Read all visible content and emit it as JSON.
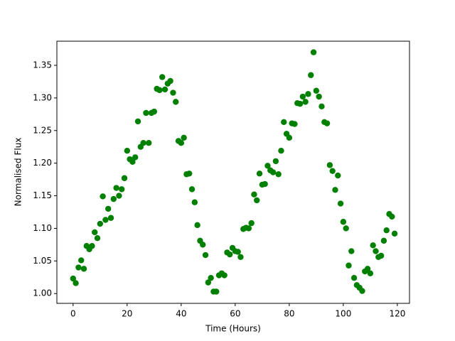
{
  "chart_data": {
    "type": "scatter",
    "xlabel": "Time (Hours)",
    "ylabel": "Normalised Flux",
    "color": "#008000",
    "x": [
      0,
      1,
      2,
      3,
      4,
      5,
      6,
      7,
      8,
      9,
      10,
      11,
      12,
      13,
      14,
      15,
      16,
      17,
      18,
      19,
      20,
      21,
      22,
      23,
      24,
      25,
      26,
      27,
      28,
      29,
      30,
      31,
      32,
      33,
      34,
      35,
      36,
      37,
      38,
      39,
      40,
      41,
      42,
      43,
      44,
      45,
      46,
      47,
      48,
      49,
      50,
      51,
      52,
      53,
      54,
      55,
      56,
      57,
      58,
      59,
      60,
      61,
      62,
      63,
      64,
      65,
      66,
      67,
      68,
      69,
      70,
      71,
      72,
      73,
      74,
      75,
      76,
      77,
      78,
      79,
      80,
      81,
      82,
      83,
      84,
      85,
      86,
      87,
      88,
      89,
      90,
      91,
      92,
      93,
      94,
      95,
      96,
      97,
      98,
      99,
      100,
      101,
      102,
      103,
      104,
      105,
      106,
      107,
      108,
      109,
      110,
      111,
      112,
      113,
      114,
      115,
      116,
      117,
      118,
      119
    ],
    "values": [
      1.023,
      1.016,
      1.04,
      1.051,
      1.038,
      1.073,
      1.068,
      1.073,
      1.094,
      1.085,
      1.107,
      1.149,
      1.113,
      1.13,
      1.116,
      1.145,
      1.162,
      1.15,
      1.16,
      1.177,
      1.219,
      1.206,
      1.202,
      1.209,
      1.264,
      1.225,
      1.231,
      1.277,
      1.231,
      1.277,
      1.279,
      1.314,
      1.312,
      1.332,
      1.313,
      1.322,
      1.326,
      1.308,
      1.294,
      1.234,
      1.231,
      1.239,
      1.183,
      1.184,
      1.16,
      1.14,
      1.105,
      1.081,
      1.075,
      1.059,
      1.017,
      1.024,
      1.003,
      1.003,
      1.028,
      1.031,
      1.028,
      1.063,
      1.06,
      1.07,
      1.065,
      1.064,
      1.056,
      1.099,
      1.101,
      1.1,
      1.108,
      1.152,
      1.143,
      1.184,
      1.167,
      1.168,
      1.196,
      1.189,
      1.186,
      1.203,
      1.183,
      1.219,
      1.263,
      1.245,
      1.239,
      1.261,
      1.26,
      1.292,
      1.291,
      1.302,
      1.294,
      1.306,
      1.335,
      1.37,
      1.311,
      1.302,
      1.287,
      1.263,
      1.261,
      1.197,
      1.188,
      1.159,
      1.181,
      1.138,
      1.11,
      1.1,
      1.043,
      1.065,
      1.024,
      1.013,
      1.009,
      1.004,
      1.034,
      1.038,
      1.031,
      1.074,
      1.065,
      1.056,
      1.058,
      1.081,
      1.097,
      1.122,
      1.118,
      1.092
    ],
    "xlim": [
      -6,
      124.5
    ],
    "ylim": [
      0.985,
      1.387
    ],
    "xticks": [
      0,
      20,
      40,
      60,
      80,
      100,
      120
    ],
    "yticks": [
      {
        "value": 1.0,
        "label": "1.00"
      },
      1.05,
      {
        "value": 1.1,
        "label": "1.10"
      },
      1.15,
      {
        "value": 1.2,
        "label": "1.20"
      },
      1.25,
      {
        "value": 1.3,
        "label": "1.30"
      },
      1.35
    ]
  }
}
